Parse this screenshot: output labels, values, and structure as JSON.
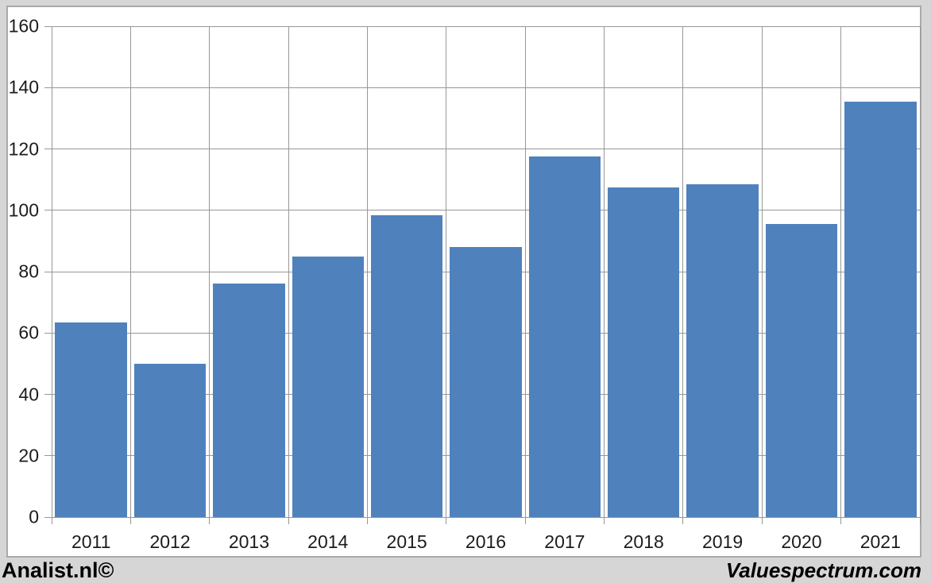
{
  "chart_data": {
    "type": "bar",
    "categories": [
      "2011",
      "2012",
      "2013",
      "2014",
      "2015",
      "2016",
      "2017",
      "2018",
      "2019",
      "2020",
      "2021"
    ],
    "values": [
      63.5,
      50,
      76,
      85,
      98.5,
      88,
      117.5,
      107.5,
      108.5,
      95.5,
      135.5
    ],
    "title": "",
    "xlabel": "",
    "ylabel": "",
    "ylim": [
      0,
      160
    ],
    "ytick_step": 20,
    "ytick_labels": [
      "0",
      "20",
      "40",
      "60",
      "80",
      "100",
      "120",
      "140",
      "160"
    ],
    "grid": true,
    "legend": "none",
    "bar_color": "#4f81bd",
    "gridline_color": "#979797",
    "plot_background": "#ffffff",
    "page_background": "#d6d6d6"
  },
  "footer": {
    "left_watermark": "Analist.nl©",
    "right_watermark": "Valuespectrum.com"
  }
}
